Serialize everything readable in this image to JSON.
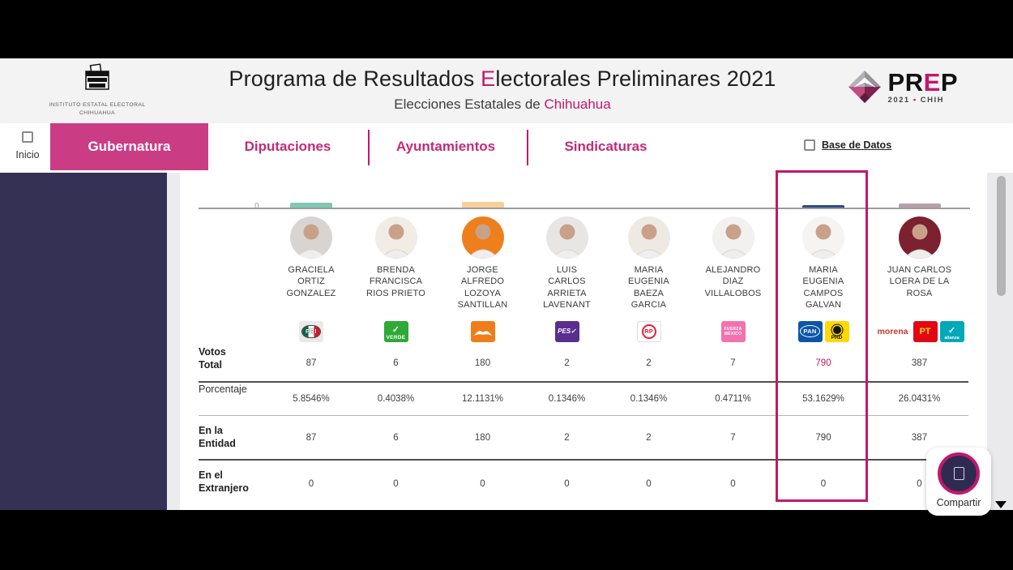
{
  "header": {
    "iee_logo": {
      "line1": "INSTITUTO ESTATAL ELECTORAL",
      "line2": "CHIHUAHUA"
    },
    "title": {
      "part1": "Programa de Resultados ",
      "accent": "E",
      "part2": "lectorales Preliminares 2021"
    },
    "subtitle": {
      "part1": "Elecciones Estatales de ",
      "accent": "Chihuahua"
    },
    "prep_logo": {
      "pre": "PR",
      "accent": "E",
      "post": "P",
      "year": "2021",
      "dot": "•",
      "state": "CHIH"
    }
  },
  "nav": {
    "inicio": "Inicio",
    "tabs": [
      {
        "label": "Gubernatura",
        "active": true
      },
      {
        "label": "Diputaciones",
        "active": false
      },
      {
        "label": "Ayuntamientos",
        "active": false
      },
      {
        "label": "Sindicaturas",
        "active": false
      }
    ],
    "base_datos": "Base de Datos"
  },
  "colors": {
    "accent": "#c2186b",
    "active_tab": "#ca3d85",
    "sidebar": "#353154",
    "highlighted_value": "#c2186b"
  },
  "chart_remnant": {
    "zero_label": "0",
    "bars": [
      {
        "column": 1,
        "color": "#7fc8b5",
        "height": 6
      },
      {
        "column": 3,
        "color": "#f6cf9a",
        "height": 7
      },
      {
        "column": 7,
        "color": "#2c4a85",
        "height": 3
      },
      {
        "column": 8,
        "color": "#b7a0aa",
        "height": 5
      }
    ]
  },
  "table": {
    "row_labels": {
      "votos": [
        "Votos",
        "Total"
      ],
      "porcentaje": "Porcentaje",
      "entidad": [
        "En la",
        "Entidad"
      ],
      "extranjero": [
        "En el",
        "Extranjero"
      ]
    },
    "parties": {
      "pri": {
        "label": "PRI"
      },
      "verde": {
        "label": "VERDE"
      },
      "mc": {
        "label": "MC"
      },
      "pes": {
        "label": "PES"
      },
      "rsp": {
        "label": "RP"
      },
      "fxm": {
        "label": "FUERZA MÉXICO"
      },
      "pan": {
        "label": "PAN"
      },
      "prd": {
        "label": "PRD"
      },
      "morena": {
        "label": "morena"
      },
      "pt": {
        "label": "PT"
      },
      "na": {
        "label": "alianza"
      }
    },
    "candidates": [
      {
        "name_lines": [
          "GRACIELA",
          "ORTIZ",
          "GONZALEZ"
        ],
        "parties": [
          "pri"
        ],
        "votes_total": "87",
        "porcentaje": "5.8546%",
        "en_entidad": "87",
        "en_extranjero": "0",
        "photo_bg": "#d8d4d2",
        "highlighted": false
      },
      {
        "name_lines": [
          "BRENDA",
          "FRANCISCA",
          "RIOS PRIETO"
        ],
        "parties": [
          "verde"
        ],
        "votes_total": "6",
        "porcentaje": "0.4038%",
        "en_entidad": "6",
        "en_extranjero": "0",
        "photo_bg": "#f1ece6",
        "highlighted": false
      },
      {
        "name_lines": [
          "JORGE",
          "ALFREDO",
          "LOZOYA",
          "SANTILLAN"
        ],
        "parties": [
          "mc"
        ],
        "votes_total": "180",
        "porcentaje": "12.1131%",
        "en_entidad": "180",
        "en_extranjero": "0",
        "photo_bg": "#ee7f1c",
        "highlighted": false
      },
      {
        "name_lines": [
          "LUIS",
          "CARLOS",
          "ARRIETA",
          "LAVENANT"
        ],
        "parties": [
          "pes"
        ],
        "votes_total": "2",
        "porcentaje": "0.1346%",
        "en_entidad": "2",
        "en_extranjero": "0",
        "photo_bg": "#e8e6e4",
        "highlighted": false
      },
      {
        "name_lines": [
          "MARIA",
          "EUGENIA",
          "BAEZA",
          "GARCIA"
        ],
        "parties": [
          "rsp"
        ],
        "votes_total": "2",
        "porcentaje": "0.1346%",
        "en_entidad": "2",
        "en_extranjero": "0",
        "photo_bg": "#efe9e4",
        "highlighted": false
      },
      {
        "name_lines": [
          "ALEJANDRO",
          "DIAZ",
          "VILLALOBOS"
        ],
        "parties": [
          "fxm"
        ],
        "votes_total": "7",
        "porcentaje": "0.4711%",
        "en_entidad": "7",
        "en_extranjero": "0",
        "photo_bg": "#f3f1ef",
        "highlighted": false
      },
      {
        "name_lines": [
          "MARIA",
          "EUGENIA",
          "CAMPOS",
          "GALVAN"
        ],
        "parties": [
          "pan",
          "prd"
        ],
        "votes_total": "790",
        "porcentaje": "53.1629%",
        "en_entidad": "790",
        "en_extranjero": "0",
        "photo_bg": "#f5f4f2",
        "highlighted": true
      },
      {
        "name_lines": [
          "JUAN CARLOS",
          "LOERA DE LA",
          "ROSA"
        ],
        "parties": [
          "morena",
          "pt",
          "na"
        ],
        "votes_total": "387",
        "porcentaje": "26.0431%",
        "en_entidad": "387",
        "en_extranjero": "0",
        "photo_bg": "#7c2130",
        "highlighted": false
      }
    ]
  },
  "share": {
    "label": "Compartir"
  }
}
